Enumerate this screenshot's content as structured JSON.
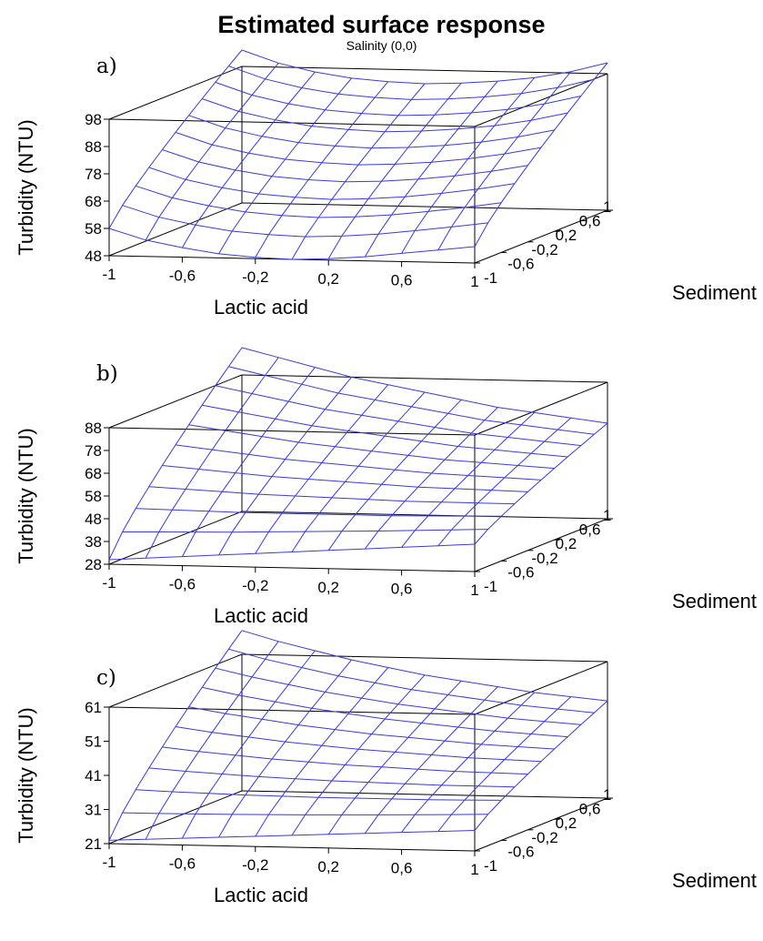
{
  "figure": {
    "title": "Estimated surface response",
    "subtitle": "Salinity (0,0)"
  },
  "chart_data": [
    {
      "type": "surface",
      "panel": "a)",
      "xlabel": "Lactic acid",
      "ylabel": "Sediment",
      "zlabel": "Turbidity (NTU)",
      "x_ticks": [
        "-1",
        "-0,6",
        "-0,2",
        "0,2",
        "0,6",
        "1"
      ],
      "y_ticks": [
        "-1",
        "-0,6",
        "-0,2",
        "0,2",
        "0,6",
        "1"
      ],
      "z_ticks": [
        "48",
        "58",
        "68",
        "78",
        "88",
        "98"
      ],
      "xlim": [
        -1,
        1
      ],
      "ylim": [
        -1,
        1
      ],
      "zlim": [
        48,
        98
      ],
      "grid": [
        -1,
        -0.8,
        -0.6,
        -0.4,
        -0.2,
        0,
        0.2,
        0.4,
        0.6,
        0.8,
        1
      ],
      "z_front": [
        58,
        54,
        51.5,
        49.5,
        48.5,
        48,
        48.5,
        49.5,
        51,
        52.5,
        54
      ],
      "z_back": [
        104,
        99.5,
        96.5,
        94.5,
        93.5,
        93,
        93.5,
        94.5,
        96,
        98.5,
        102
      ],
      "series_color": "#3a3ad6"
    },
    {
      "type": "surface",
      "panel": "b)",
      "xlabel": "Lactic acid",
      "ylabel": "Sediment",
      "zlabel": "Turbidity (NTU)",
      "x_ticks": [
        "-1",
        "-0,6",
        "-0,2",
        "0,2",
        "0,6",
        "1"
      ],
      "y_ticks": [
        "-1",
        "-0,6",
        "-0,2",
        "0,2",
        "0,6",
        "1"
      ],
      "z_ticks": [
        "28",
        "38",
        "48",
        "58",
        "68",
        "78",
        "88"
      ],
      "xlim": [
        -1,
        1
      ],
      "ylim": [
        -1,
        1
      ],
      "zlim": [
        28,
        88
      ],
      "grid": [
        -1,
        -0.8,
        -0.6,
        -0.4,
        -0.2,
        0,
        0.2,
        0.4,
        0.6,
        0.8,
        1
      ],
      "z_front": [
        30,
        31,
        32,
        33,
        34,
        35,
        36,
        37,
        38,
        39,
        40
      ],
      "z_back": [
        100,
        96,
        92,
        88,
        85,
        82,
        79,
        76,
        74,
        72,
        70
      ],
      "series_color": "#3a3ad6"
    },
    {
      "type": "surface",
      "panel": "c)",
      "xlabel": "Lactic acid",
      "ylabel": "Sediment",
      "zlabel": "Turbidity (NTU)",
      "x_ticks": [
        "-1",
        "-0,6",
        "-0,2",
        "0,2",
        "0,6",
        "1"
      ],
      "y_ticks": [
        "-1",
        "-0,6",
        "-0,2",
        "0,2",
        "0,6",
        "1"
      ],
      "z_ticks": [
        "21",
        "31",
        "41",
        "51",
        "61"
      ],
      "xlim": [
        -1,
        1
      ],
      "ylim": [
        -1,
        1
      ],
      "zlim": [
        21,
        61
      ],
      "grid": [
        -1,
        -0.8,
        -0.6,
        -0.4,
        -0.2,
        0,
        0.2,
        0.4,
        0.6,
        0.8,
        1
      ],
      "z_front": [
        22,
        22.5,
        23,
        23.5,
        24,
        24.5,
        25,
        25.5,
        26,
        26.5,
        27
      ],
      "z_back": [
        68,
        65,
        62.5,
        60,
        58,
        56,
        54.5,
        53,
        51.5,
        50.5,
        49.5
      ],
      "series_color": "#3a3ad6"
    }
  ]
}
